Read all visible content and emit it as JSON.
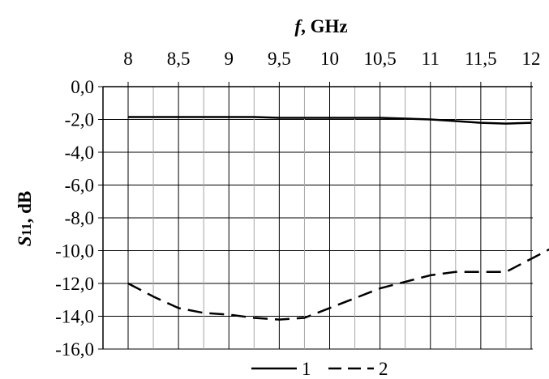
{
  "chart_data": {
    "type": "line",
    "xlabel": {
      "var": "f",
      "rest": ", GHz"
    },
    "ylabel": {
      "var": "S",
      "sub": "11",
      "rest": ", dB"
    },
    "x_ticks": [
      "8",
      "8,5",
      "9",
      "9,5",
      "10",
      "10,5",
      "11",
      "11,5",
      "12"
    ],
    "y_ticks": [
      "0,0",
      "-2,0",
      "-4,0",
      "-6,0",
      "-8,0",
      "-10,0",
      "-12,0",
      "-14,0",
      "-16,0"
    ],
    "xlim": [
      8,
      12
    ],
    "ylim": [
      -16,
      0
    ],
    "x_axis_position": "top",
    "grid": true,
    "legend_position": "bottom-center",
    "series": [
      {
        "name": "1",
        "style": "solid",
        "color": "#000000",
        "points": [
          [
            8.0,
            -1.85
          ],
          [
            8.5,
            -1.85
          ],
          [
            9.0,
            -1.85
          ],
          [
            9.25,
            -1.85
          ],
          [
            9.5,
            -1.9
          ],
          [
            10.0,
            -1.9
          ],
          [
            10.5,
            -1.9
          ],
          [
            11.0,
            -2.0
          ],
          [
            11.25,
            -2.1
          ],
          [
            11.5,
            -2.2
          ],
          [
            11.75,
            -2.25
          ],
          [
            12.0,
            -2.2
          ]
        ]
      },
      {
        "name": "2",
        "style": "dashed",
        "color": "#000000",
        "points": [
          [
            8.0,
            -12.0
          ],
          [
            8.25,
            -12.8
          ],
          [
            8.5,
            -13.5
          ],
          [
            8.75,
            -13.8
          ],
          [
            9.0,
            -13.9
          ],
          [
            9.25,
            -14.1
          ],
          [
            9.5,
            -14.2
          ],
          [
            9.75,
            -14.1
          ],
          [
            10.0,
            -13.5
          ],
          [
            10.5,
            -12.3
          ],
          [
            11.0,
            -11.5
          ],
          [
            11.25,
            -11.3
          ],
          [
            11.5,
            -11.3
          ],
          [
            11.75,
            -11.3
          ],
          [
            12.0,
            -10.5
          ],
          [
            12.25,
            -9.7
          ]
        ]
      }
    ]
  }
}
